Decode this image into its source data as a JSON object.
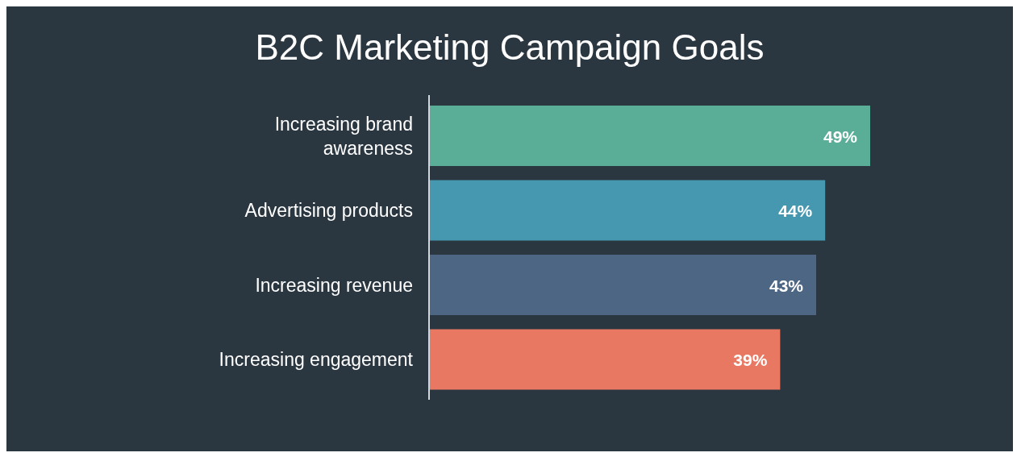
{
  "chart_data": {
    "type": "bar",
    "orientation": "horizontal",
    "title": "B2C Marketing Campaign Goals",
    "categories": [
      "Increasing brand awareness",
      "Advertising products",
      "Increasing revenue",
      "Increasing engagement"
    ],
    "values": [
      49,
      44,
      43,
      39
    ],
    "colors": [
      "#5aae98",
      "#4698b0",
      "#4d6683",
      "#e87862"
    ],
    "value_labels": [
      "49%",
      "44%",
      "43%",
      "39%"
    ]
  }
}
